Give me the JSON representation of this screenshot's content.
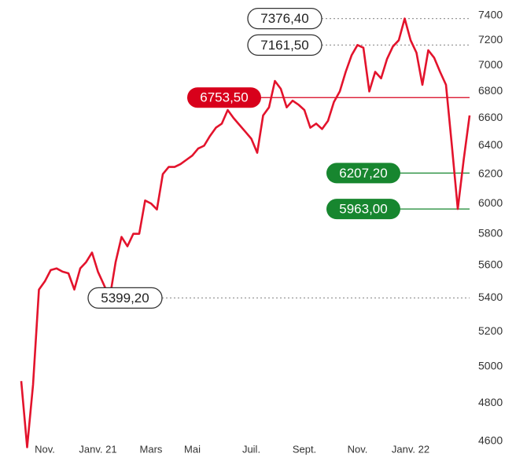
{
  "chart_data": {
    "type": "line",
    "log_scale": true,
    "color": "#e3132c",
    "ylim": [
      4600,
      7400
    ],
    "yticks": [
      4600,
      4800,
      5000,
      5200,
      5400,
      5600,
      5800,
      6000,
      6200,
      6400,
      6600,
      6800,
      7000,
      7200,
      7400
    ],
    "categories": [
      null,
      null,
      null,
      null,
      "Nov.",
      null,
      null,
      null,
      null,
      null,
      null,
      null,
      null,
      "Janv. 21",
      null,
      null,
      null,
      null,
      null,
      null,
      null,
      null,
      "Mars",
      null,
      null,
      null,
      null,
      null,
      null,
      "Mai",
      null,
      null,
      null,
      null,
      null,
      null,
      null,
      null,
      null,
      "Juil.",
      null,
      null,
      null,
      null,
      null,
      null,
      null,
      null,
      "Sept.",
      null,
      null,
      null,
      null,
      null,
      null,
      null,
      null,
      "Nov.",
      null,
      null,
      null,
      null,
      null,
      null,
      null,
      null,
      "Janv. 22",
      null,
      null,
      null,
      null,
      null,
      null,
      null,
      null,
      null,
      null
    ],
    "values": [
      4920,
      4570,
      4900,
      5450,
      5500,
      5570,
      5580,
      5560,
      5550,
      5450,
      5580,
      5620,
      5680,
      5560,
      5480,
      5399.2,
      5620,
      5780,
      5720,
      5800,
      5800,
      6020,
      6000,
      5960,
      6200,
      6250,
      6250,
      6270,
      6300,
      6330,
      6380,
      6400,
      6470,
      6530,
      6560,
      6660,
      6600,
      6550,
      6500,
      6450,
      6350,
      6620,
      6680,
      6880,
      6820,
      6680,
      6730,
      6700,
      6660,
      6530,
      6560,
      6520,
      6580,
      6720,
      6800,
      6950,
      7080,
      7161.5,
      7140,
      6800,
      6950,
      6900,
      7050,
      7150,
      7200,
      7376.4,
      7200,
      7100,
      6850,
      7120,
      7060,
      6950,
      6850,
      6400,
      5963,
      6300,
      6620
    ],
    "annotations": [
      {
        "value": 7376.4,
        "label": "7376,40",
        "style": "outline"
      },
      {
        "value": 7161.5,
        "label": "7161,50",
        "style": "outline"
      },
      {
        "value": 6753.5,
        "label": "6753,50",
        "style": "red"
      },
      {
        "value": 6207.2,
        "label": "6207,20",
        "style": "green"
      },
      {
        "value": 5963,
        "label": "5963,00",
        "style": "green"
      },
      {
        "value": 5399.2,
        "label": "5399,20",
        "style": "outline"
      }
    ]
  }
}
